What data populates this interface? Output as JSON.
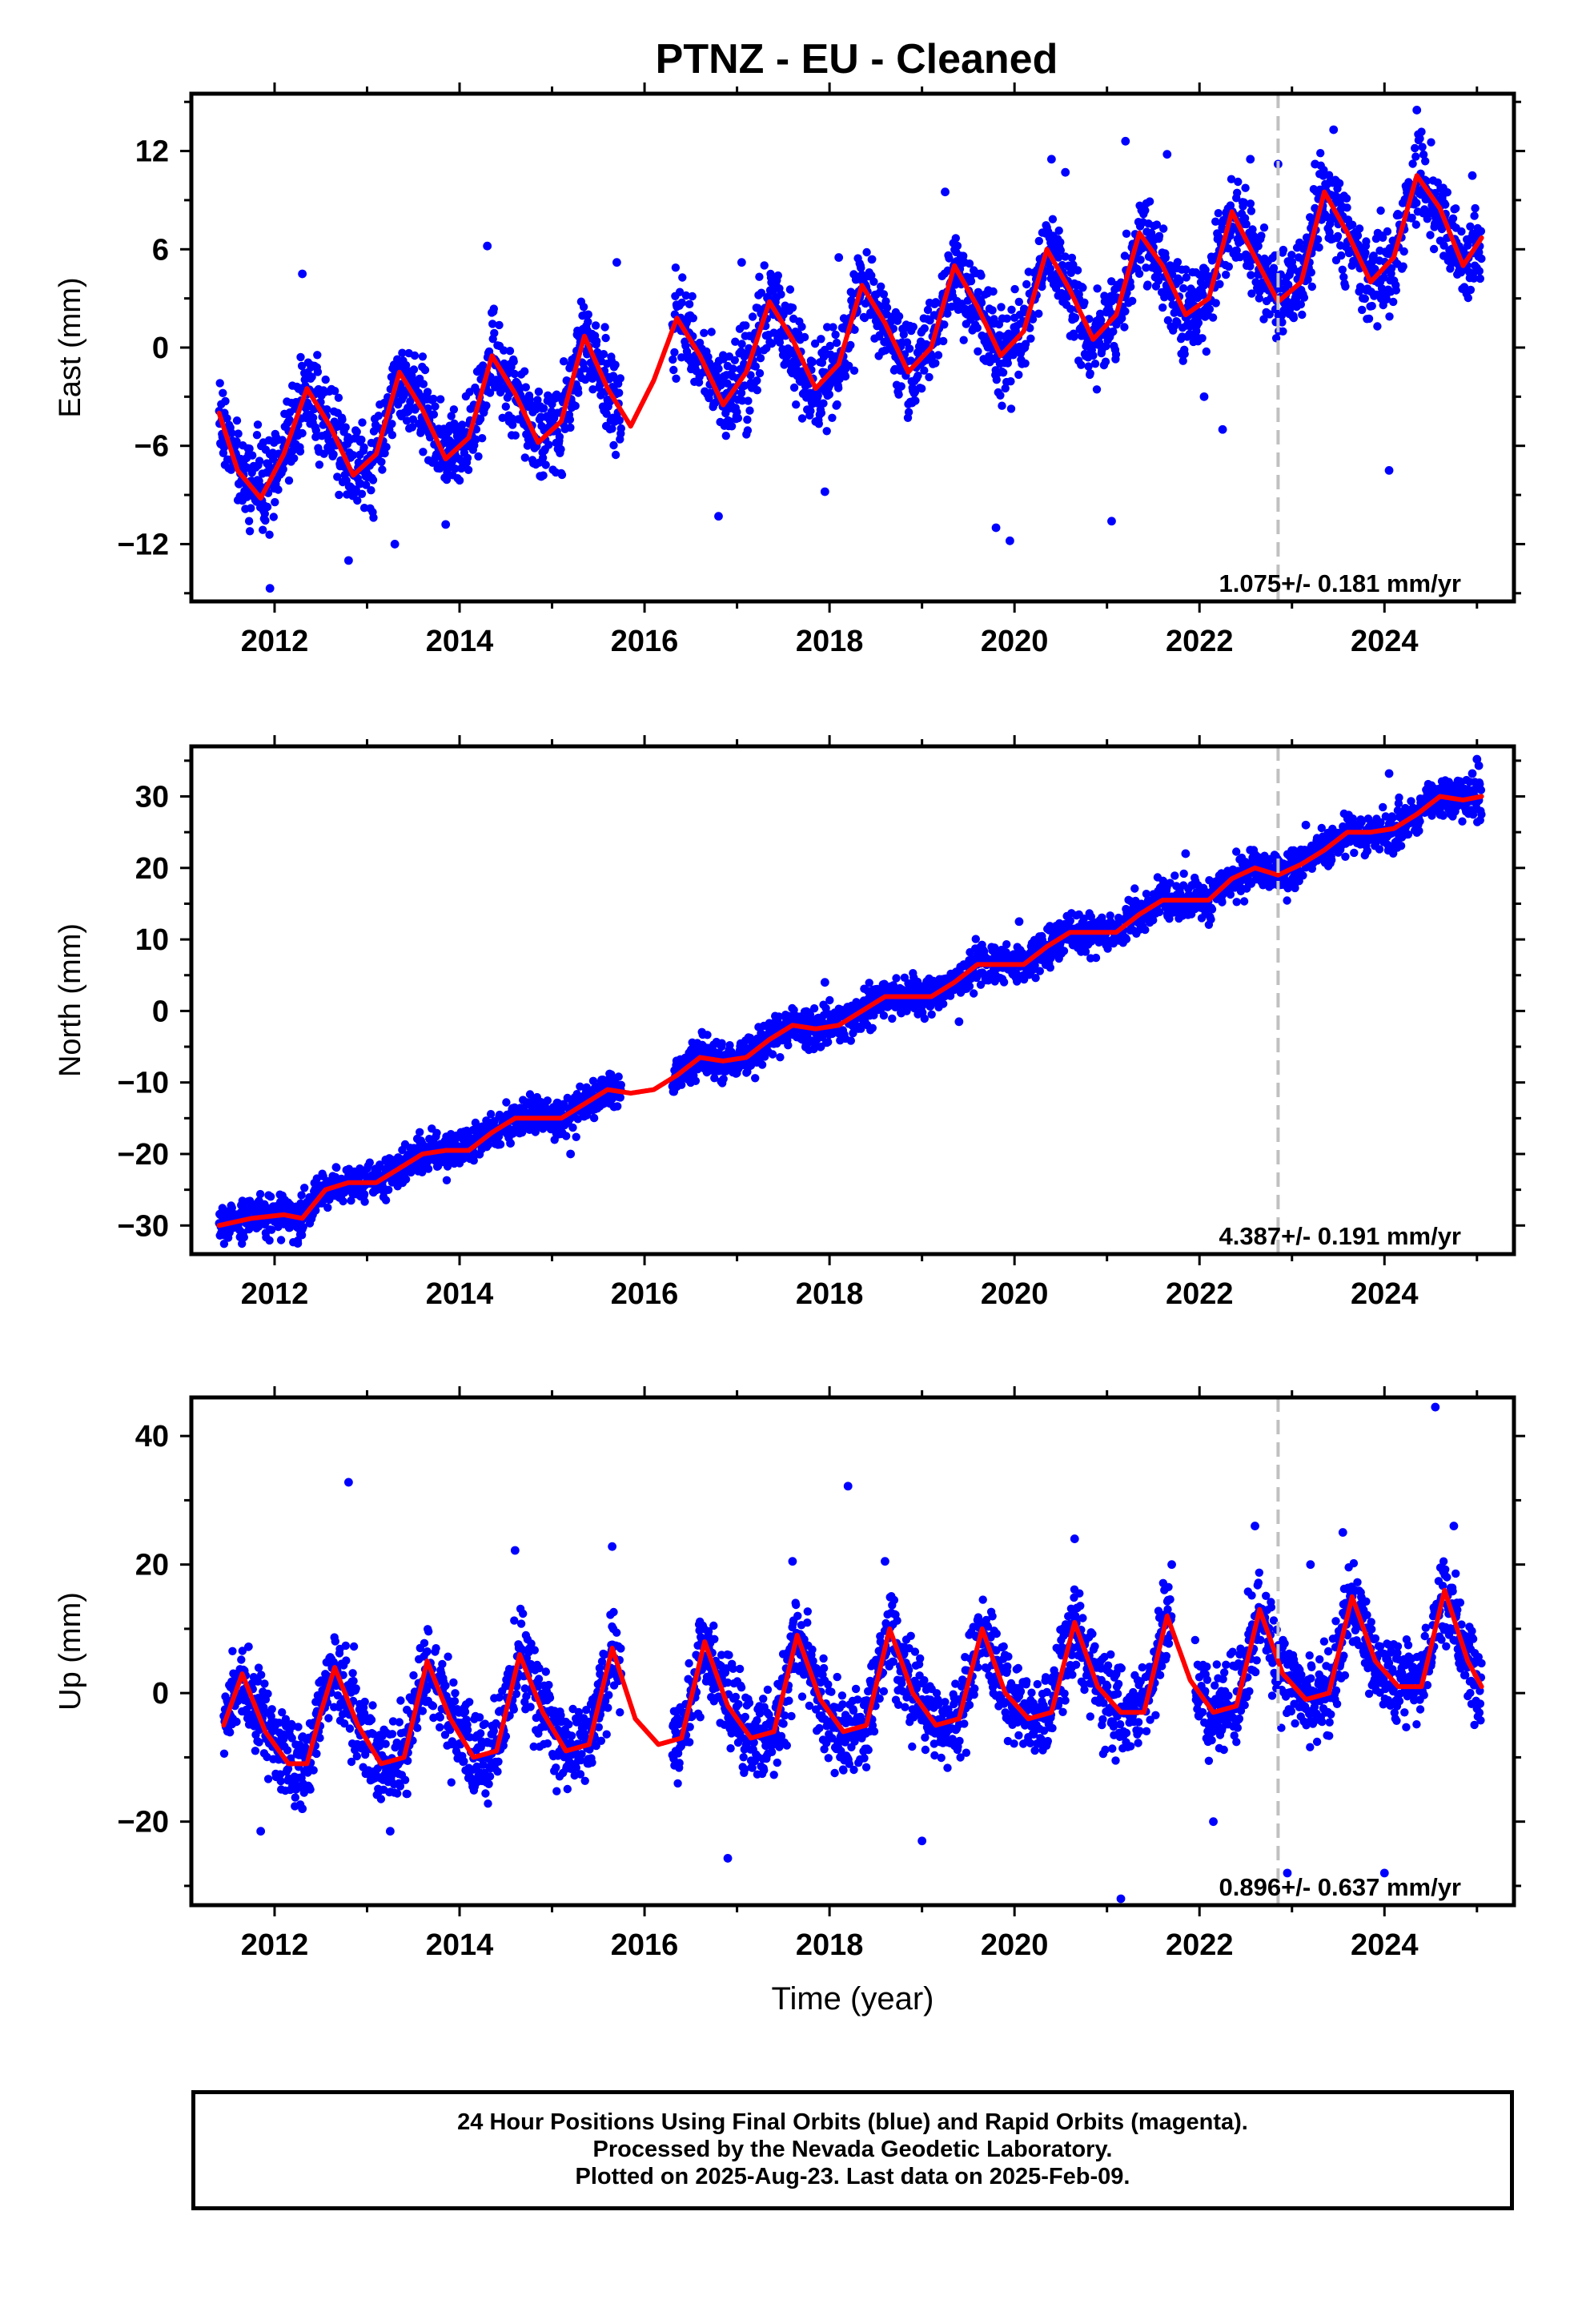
{
  "title": "PTNZ  - EU - Cleaned",
  "x_axis_label": "Time (year)",
  "colors": {
    "points": "#0000ff",
    "fit": "#ff0000",
    "reference_line": "#c0c0c0"
  },
  "chart_data": [
    {
      "type": "scatter",
      "id": "east",
      "ylabel": "East (mm)",
      "xlim": [
        2011.1,
        2025.4
      ],
      "ylim": [
        -15.5,
        15.5
      ],
      "xticks": [
        2012,
        2014,
        2016,
        2018,
        2020,
        2022,
        2024
      ],
      "yticks": [
        -12,
        -6,
        0,
        6,
        12
      ],
      "rate_label": "1.075+/- 0.181 mm/yr",
      "reference_line_x": 2022.85,
      "series": [
        {
          "kind": "fit",
          "x": [
            2011.4,
            2011.6,
            2011.85,
            2012.1,
            2012.35,
            2012.6,
            2012.85,
            2013.1,
            2013.35,
            2013.6,
            2013.85,
            2014.1,
            2014.35,
            2014.6,
            2014.85,
            2015.1,
            2015.35,
            2015.6,
            2015.85,
            2016.1,
            2016.35,
            2016.6,
            2016.85,
            2017.1,
            2017.35,
            2017.6,
            2017.85,
            2018.1,
            2018.35,
            2018.6,
            2018.85,
            2019.1,
            2019.35,
            2019.6,
            2019.85,
            2020.1,
            2020.35,
            2020.6,
            2020.85,
            2021.1,
            2021.35,
            2021.6,
            2021.85,
            2022.1,
            2022.35,
            2022.6,
            2022.85,
            2023.1,
            2023.35,
            2023.6,
            2023.85,
            2024.1,
            2024.35,
            2024.6,
            2024.85,
            2025.05
          ],
          "y": [
            -4,
            -7.5,
            -9.2,
            -6.5,
            -2.5,
            -4.8,
            -7.8,
            -6.5,
            -1.5,
            -3.8,
            -6.8,
            -5.5,
            -0.5,
            -2.8,
            -5.8,
            -4.5,
            0.7,
            -2.5,
            -4.8,
            -2,
            1.8,
            -0.5,
            -3.5,
            -1.5,
            2.8,
            0.5,
            -2.5,
            -1,
            3.8,
            1.5,
            -1.5,
            0,
            5,
            2.5,
            -0.5,
            1,
            6,
            3.5,
            0.5,
            2,
            7,
            5,
            2,
            3,
            8.3,
            5.5,
            2.8,
            4,
            9.5,
            7,
            4,
            5.5,
            10.5,
            8.5,
            5,
            6.7
          ]
        },
        {
          "kind": "outliers",
          "x": [
            2011.95,
            2012.3,
            2012.8,
            2013.3,
            2013.85,
            2014.3,
            2015.7,
            2016.8,
            2017.05,
            2017.95,
            2018.1,
            2019.25,
            2019.8,
            2019.95,
            2020.4,
            2020.55,
            2021.05,
            2021.2,
            2021.65,
            2022.05,
            2022.25,
            2022.55,
            2022.85,
            2023.25,
            2023.45,
            2024.05,
            2024.35,
            2024.95
          ],
          "y": [
            -14.7,
            4.5,
            -13,
            -12,
            -10.8,
            6.2,
            5.2,
            -10.3,
            5.2,
            -8.8,
            5.5,
            9.5,
            -11,
            -11.8,
            11.5,
            10.7,
            -10.6,
            12.6,
            11.8,
            -3,
            -5,
            11.5,
            11.2,
            11.2,
            13.3,
            -7.5,
            14.5,
            10.5
          ]
        }
      ]
    },
    {
      "type": "scatter",
      "id": "north",
      "ylabel": "North (mm)",
      "xlim": [
        2011.1,
        2025.4
      ],
      "ylim": [
        -34,
        37
      ],
      "xticks": [
        2012,
        2014,
        2016,
        2018,
        2020,
        2022,
        2024
      ],
      "yticks": [
        -30,
        -20,
        -10,
        0,
        10,
        20,
        30
      ],
      "rate_label": "4.387+/- 0.191 mm/yr",
      "reference_line_x": 2022.85,
      "series": [
        {
          "kind": "fit",
          "x": [
            2011.4,
            2011.75,
            2012.1,
            2012.3,
            2012.55,
            2012.8,
            2013.1,
            2013.35,
            2013.6,
            2013.85,
            2014.1,
            2014.35,
            2014.6,
            2014.85,
            2015.1,
            2015.35,
            2015.6,
            2015.85,
            2016.1,
            2016.35,
            2016.6,
            2016.85,
            2017.1,
            2017.35,
            2017.6,
            2017.85,
            2018.1,
            2018.35,
            2018.6,
            2018.85,
            2019.1,
            2019.35,
            2019.6,
            2019.85,
            2020.1,
            2020.35,
            2020.6,
            2020.85,
            2021.1,
            2021.35,
            2021.6,
            2021.85,
            2022.1,
            2022.35,
            2022.6,
            2022.85,
            2023.1,
            2023.35,
            2023.6,
            2023.85,
            2024.1,
            2024.35,
            2024.6,
            2024.85,
            2025.05
          ],
          "y": [
            -30,
            -29,
            -28.5,
            -29,
            -25,
            -24,
            -24,
            -22,
            -20,
            -19.5,
            -19.5,
            -17,
            -15,
            -15,
            -15,
            -13,
            -11,
            -11.5,
            -11,
            -9,
            -6.5,
            -7,
            -6.5,
            -4,
            -2,
            -2.5,
            -2,
            0,
            2,
            2,
            2,
            4,
            6.5,
            6.5,
            6.5,
            9,
            11,
            11,
            11,
            13.5,
            15.5,
            15.5,
            15.5,
            18.5,
            20,
            19,
            20.5,
            22.5,
            25,
            25,
            25.5,
            27.5,
            30,
            29.5,
            30
          ]
        },
        {
          "kind": "outliers",
          "x": [
            2012.25,
            2014.55,
            2015.2,
            2016.5,
            2017.95,
            2019.4,
            2020.05,
            2021.85,
            2022.55,
            2023.15,
            2024.05,
            2024.95,
            2025.0,
            2025.02
          ],
          "y": [
            -32.5,
            -18.5,
            -20,
            -6,
            4,
            -1.5,
            12.5,
            22,
            22.5,
            26,
            33.2,
            33.2,
            35.2,
            34.3
          ]
        }
      ]
    },
    {
      "type": "scatter",
      "id": "up",
      "ylabel": "Up (mm)",
      "xlim": [
        2011.1,
        2025.4
      ],
      "ylim": [
        -33,
        46
      ],
      "xticks": [
        2012,
        2014,
        2016,
        2018,
        2020,
        2022,
        2024
      ],
      "yticks": [
        -20,
        0,
        20,
        40
      ],
      "rate_label": "0.896+/- 0.637 mm/yr",
      "reference_line_x": 2022.85,
      "series": [
        {
          "kind": "fit",
          "x": [
            2011.45,
            2011.65,
            2011.9,
            2012.15,
            2012.35,
            2012.5,
            2012.65,
            2012.9,
            2013.15,
            2013.4,
            2013.65,
            2013.9,
            2014.15,
            2014.4,
            2014.65,
            2014.9,
            2015.15,
            2015.4,
            2015.65,
            2015.9,
            2016.15,
            2016.4,
            2016.65,
            2016.9,
            2017.15,
            2017.4,
            2017.65,
            2017.9,
            2018.15,
            2018.4,
            2018.65,
            2018.9,
            2019.15,
            2019.4,
            2019.65,
            2019.9,
            2020.15,
            2020.4,
            2020.65,
            2020.9,
            2021.15,
            2021.4,
            2021.65,
            2021.9,
            2022.15,
            2022.4,
            2022.65,
            2022.9,
            2023.15,
            2023.4,
            2023.65,
            2023.9,
            2024.15,
            2024.4,
            2024.65,
            2024.9,
            2025.05
          ],
          "y": [
            -5,
            3,
            -6,
            -11,
            -11,
            -3,
            4,
            -5,
            -11,
            -10,
            5,
            -4,
            -10,
            -9,
            6,
            -3,
            -9,
            -8,
            7,
            -4,
            -8,
            -7,
            8,
            -2,
            -7,
            -6,
            9,
            -1,
            -6,
            -5,
            10,
            0,
            -5,
            -4,
            10,
            0,
            -4,
            -3,
            11,
            1,
            -3,
            -3,
            12,
            2,
            -3,
            -2,
            13,
            3,
            -1,
            0,
            15,
            5,
            1,
            1,
            16,
            5,
            1
          ]
        },
        {
          "kind": "outliers",
          "x": [
            2011.85,
            2012.3,
            2012.8,
            2013.25,
            2014.6,
            2015.65,
            2016.9,
            2017.6,
            2018.2,
            2018.6,
            2019.0,
            2020.65,
            2021.15,
            2021.7,
            2022.15,
            2022.6,
            2022.95,
            2023.2,
            2023.55,
            2024.0,
            2024.55,
            2024.75
          ],
          "y": [
            -21.5,
            -18,
            32.8,
            -21.5,
            22.2,
            22.8,
            -25.7,
            20.5,
            32.2,
            20.5,
            -23,
            24,
            -32,
            20,
            -20,
            26,
            -28,
            20,
            25,
            -28,
            44.5,
            26
          ]
        }
      ]
    }
  ],
  "footer": {
    "line1": "24 Hour Positions Using Final Orbits (blue) and Rapid Orbits (magenta).",
    "line2": "Processed by the Nevada Geodetic Laboratory.",
    "line3": "Plotted on 2025-Aug-23. Last data on 2025-Feb-09."
  }
}
